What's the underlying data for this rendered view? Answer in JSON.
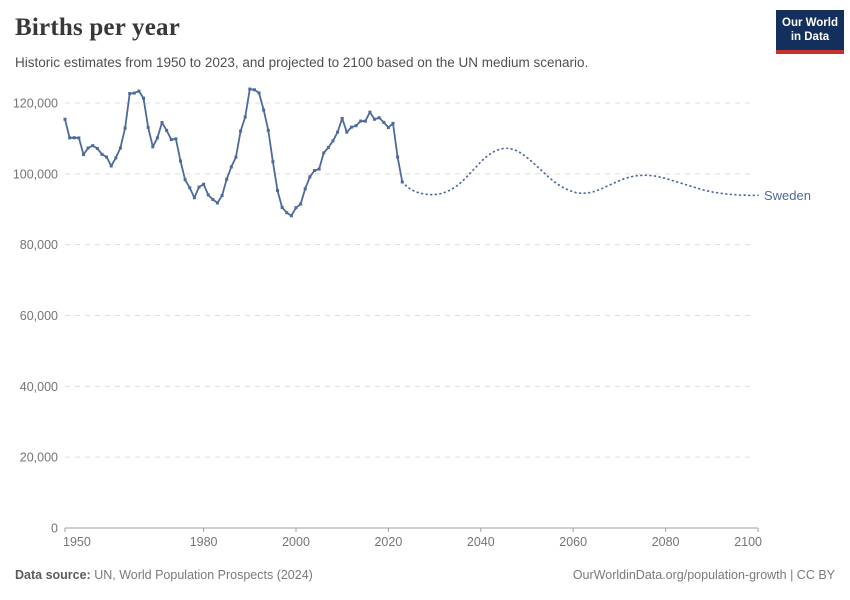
{
  "header": {
    "title": "Births per year",
    "subtitle": "Historic estimates from 1950 to 2023, and projected to 2100 based on the UN medium scenario."
  },
  "logo": {
    "line1": "Our World",
    "line2": "in Data",
    "bg_color": "#12305B",
    "bar_color": "#C5312D"
  },
  "footer": {
    "source_label": "Data source:",
    "source_text": " UN, World Population Prospects (2024)",
    "credit": "OurWorldinData.org/population-growth | CC BY"
  },
  "chart_data": {
    "type": "line",
    "title": "Births per year",
    "entity": "Sweden",
    "xlim": [
      1950,
      2100
    ],
    "ylim": [
      0,
      120000
    ],
    "x_ticks": [
      1950,
      1980,
      2000,
      2020,
      2040,
      2060,
      2080,
      2100
    ],
    "y_ticks": [
      0,
      20000,
      40000,
      60000,
      80000,
      100000,
      120000
    ],
    "y_tick_labels": [
      "0",
      "20,000",
      "40,000",
      "60,000",
      "80,000",
      "100,000",
      "120,000"
    ],
    "grid": true,
    "legend_position": "end-of-line",
    "line_color": "#4C6A9C",
    "grid_color": "#DCDCDC",
    "axis_color": "#A1A1A1",
    "tick_label_color": "#757575",
    "series": [
      {
        "name": "Sweden (historic estimates)",
        "style": "solid-markers",
        "x": [
          1950,
          1951,
          1952,
          1953,
          1954,
          1955,
          1956,
          1957,
          1958,
          1959,
          1960,
          1961,
          1962,
          1963,
          1964,
          1965,
          1966,
          1967,
          1968,
          1969,
          1970,
          1971,
          1972,
          1973,
          1974,
          1975,
          1976,
          1977,
          1978,
          1979,
          1980,
          1981,
          1982,
          1983,
          1984,
          1985,
          1986,
          1987,
          1988,
          1989,
          1990,
          1991,
          1992,
          1993,
          1994,
          1995,
          1996,
          1997,
          1998,
          1999,
          2000,
          2001,
          2002,
          2003,
          2004,
          2005,
          2006,
          2007,
          2008,
          2009,
          2010,
          2011,
          2012,
          2013,
          2014,
          2015,
          2016,
          2017,
          2018,
          2019,
          2020,
          2021,
          2022,
          2023
        ],
        "values": [
          115414,
          110168,
          110192,
          110144,
          105430,
          107305,
          107960,
          107168,
          105502,
          104743,
          102219,
          104501,
          107284,
          112903,
          122664,
          122806,
          123354,
          121360,
          113087,
          107622,
          110150,
          114484,
          112273,
          109663,
          109874,
          103632,
          98345,
          96057,
          93248,
          96255,
          97064,
          94065,
          92748,
          91780,
          93889,
          98463,
          101950,
          104699,
          112080,
          116022,
          123938,
          123737,
          122848,
          117998,
          112257,
          103422,
          95297,
          90502,
          89028,
          88173,
          90441,
          91466,
          95815,
          99157,
          100928,
          101346,
          105913,
          107421,
          109301,
          111776,
          115641,
          111770,
          113177,
          113593,
          114907,
          114870,
          117425,
          115416,
          115832,
          114523,
          113077,
          114263,
          104734,
          97700
        ]
      },
      {
        "name": "Sweden (UN medium projection)",
        "style": "dotted",
        "x": [
          2023,
          2024,
          2025,
          2026,
          2027,
          2028,
          2029,
          2030,
          2031,
          2032,
          2033,
          2034,
          2035,
          2036,
          2037,
          2038,
          2039,
          2040,
          2041,
          2042,
          2043,
          2044,
          2045,
          2046,
          2047,
          2048,
          2049,
          2050,
          2051,
          2052,
          2053,
          2054,
          2055,
          2056,
          2057,
          2058,
          2059,
          2060,
          2061,
          2062,
          2063,
          2064,
          2065,
          2066,
          2067,
          2068,
          2069,
          2070,
          2071,
          2072,
          2073,
          2074,
          2075,
          2076,
          2077,
          2078,
          2079,
          2080,
          2081,
          2082,
          2083,
          2084,
          2085,
          2086,
          2087,
          2088,
          2089,
          2090,
          2091,
          2092,
          2093,
          2094,
          2095,
          2096,
          2097,
          2098,
          2099,
          2100
        ],
        "values": [
          97700,
          96400,
          95500,
          94900,
          94500,
          94250,
          94150,
          94150,
          94300,
          94650,
          95200,
          95900,
          96800,
          97900,
          99200,
          100600,
          102000,
          103400,
          104600,
          105600,
          106400,
          106900,
          107200,
          107200,
          106900,
          106400,
          105600,
          104600,
          103500,
          102300,
          101100,
          99900,
          98700,
          97700,
          96800,
          96000,
          95400,
          94900,
          94600,
          94500,
          94600,
          94800,
          95200,
          95700,
          96300,
          96900,
          97500,
          98100,
          98600,
          99000,
          99300,
          99500,
          99600,
          99600,
          99500,
          99300,
          99000,
          98700,
          98300,
          97900,
          97500,
          97100,
          96700,
          96300,
          95900,
          95500,
          95200,
          94900,
          94700,
          94500,
          94300,
          94200,
          94100,
          94000,
          94000,
          93900,
          93900,
          93900
        ]
      }
    ]
  }
}
